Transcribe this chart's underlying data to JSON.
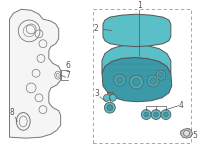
{
  "bg_color": "#ffffff",
  "part_color": "#5bbfc8",
  "part_color_dark": "#3a9aa8",
  "part_color_side": "#4aaab5",
  "line_color": "#555555",
  "engine_color": "#777777",
  "engine_fill": "#f5f5f5",
  "cap_color": "#5bbfc8",
  "small_part_color": "#aaaaaa",
  "figsize": [
    2.0,
    1.47
  ],
  "dpi": 100
}
